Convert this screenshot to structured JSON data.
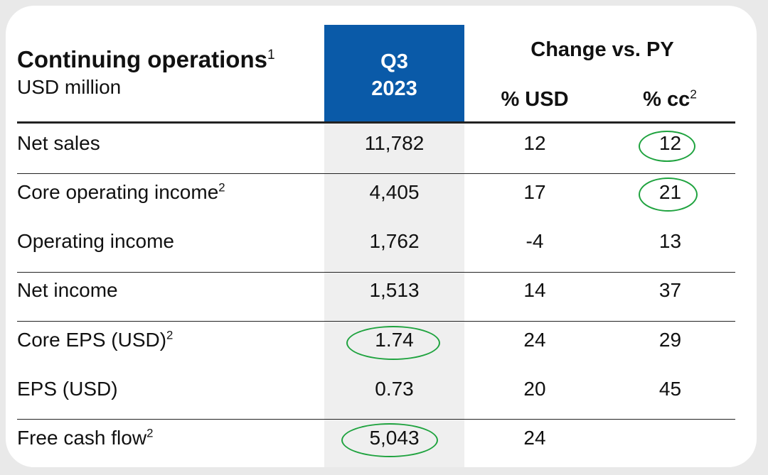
{
  "header": {
    "title": "Continuing operations",
    "title_note": "1",
    "subtitle": "USD million",
    "period_line1": "Q3",
    "period_line2": "2023",
    "change_group": "Change vs. PY",
    "col_usd": "% USD",
    "col_cc": "% cc",
    "col_cc_note": "2"
  },
  "rows": [
    {
      "label": "Net sales",
      "note": "",
      "q3": "11,782",
      "usd": "12",
      "cc": "12"
    },
    {
      "label": "Core operating income",
      "note": "2",
      "q3": "4,405",
      "usd": "17",
      "cc": "21"
    },
    {
      "label": "Operating income",
      "note": "",
      "q3": "1,762",
      "usd": "-4",
      "cc": "13"
    },
    {
      "label": "Net income",
      "note": "",
      "q3": "1,513",
      "usd": "14",
      "cc": "37"
    },
    {
      "label": "Core EPS (USD)",
      "note": "2",
      "q3": "1.74",
      "usd": "24",
      "cc": "29"
    },
    {
      "label": "EPS (USD)",
      "note": "",
      "q3": "0.73",
      "usd": "20",
      "cc": "45"
    },
    {
      "label": "Free cash flow",
      "note": "2",
      "q3": "5,043",
      "usd": "24",
      "cc": ""
    }
  ],
  "colors": {
    "header_blue": "#0a5aa8",
    "highlight_green": "#1fa33f",
    "column_shade": "#efefef"
  }
}
